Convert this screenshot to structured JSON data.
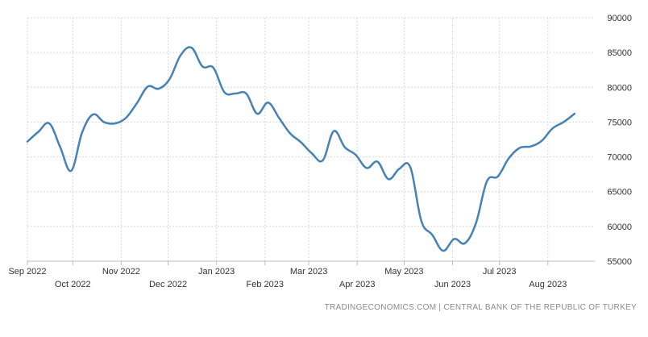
{
  "source_text": "TRADINGECONOMICS.COM  |  CENTRAL BANK OF THE REPUBLIC OF TURKEY",
  "colors": {
    "line": "#4682b4",
    "grid": "#d9d9d9",
    "axis": "#bdbdbd",
    "text": "#333333"
  },
  "chart_data": {
    "type": "line",
    "title": "",
    "xlabel": "",
    "ylabel": "",
    "ylim": [
      55000,
      90000
    ],
    "yticks": [
      55000,
      60000,
      65000,
      70000,
      75000,
      80000,
      85000,
      90000
    ],
    "y_axis_side": "right",
    "grid": true,
    "xlim": [
      "2022-09-02",
      "2023-08-31"
    ],
    "xticks": [
      {
        "date": "2022-09-01",
        "label": "Sep 2022",
        "row": 1
      },
      {
        "date": "2022-10-01",
        "label": "Oct 2022",
        "row": 2
      },
      {
        "date": "2022-11-01",
        "label": "Nov 2022",
        "row": 1
      },
      {
        "date": "2022-12-01",
        "label": "Dec 2022",
        "row": 2
      },
      {
        "date": "2023-01-01",
        "label": "Jan 2023",
        "row": 1
      },
      {
        "date": "2023-02-01",
        "label": "Feb 2023",
        "row": 2
      },
      {
        "date": "2023-03-01",
        "label": "Mar 2023",
        "row": 1
      },
      {
        "date": "2023-04-01",
        "label": "Apr 2023",
        "row": 2
      },
      {
        "date": "2023-05-01",
        "label": "May 2023",
        "row": 1
      },
      {
        "date": "2023-06-01",
        "label": "Jun 2023",
        "row": 2
      },
      {
        "date": "2023-07-01",
        "label": "Jul 2023",
        "row": 1
      },
      {
        "date": "2023-08-01",
        "label": "Aug 2023",
        "row": 2
      }
    ],
    "series": [
      {
        "name": "",
        "x": [
          "2022-09-02",
          "2022-09-09",
          "2022-09-16",
          "2022-09-23",
          "2022-09-30",
          "2022-10-07",
          "2022-10-14",
          "2022-10-21",
          "2022-10-28",
          "2022-11-04",
          "2022-11-11",
          "2022-11-18",
          "2022-11-25",
          "2022-12-02",
          "2022-12-09",
          "2022-12-16",
          "2022-12-23",
          "2022-12-30",
          "2023-01-06",
          "2023-01-13",
          "2023-01-20",
          "2023-01-27",
          "2023-02-03",
          "2023-02-10",
          "2023-02-17",
          "2023-02-24",
          "2023-03-03",
          "2023-03-10",
          "2023-03-17",
          "2023-03-24",
          "2023-03-31",
          "2023-04-07",
          "2023-04-14",
          "2023-04-21",
          "2023-04-28",
          "2023-05-05",
          "2023-05-12",
          "2023-05-19",
          "2023-05-26",
          "2023-06-02",
          "2023-06-09",
          "2023-06-16",
          "2023-06-23",
          "2023-06-30",
          "2023-07-07",
          "2023-07-14",
          "2023-07-21",
          "2023-07-28",
          "2023-08-04",
          "2023-08-11",
          "2023-08-18",
          "2023-08-25",
          "2023-08-31"
        ],
        "values": [
          72200,
          73600,
          74800,
          71400,
          68000,
          73500,
          76100,
          75000,
          74800,
          75600,
          77700,
          80100,
          79800,
          81200,
          84600,
          85700,
          83000,
          82800,
          79300,
          79100,
          79100,
          76200,
          77800,
          75600,
          73400,
          72100,
          70500,
          69500,
          73700,
          71400,
          70300,
          68400,
          69300,
          66800,
          68300,
          68500,
          60800,
          58800,
          56500,
          58200,
          57600,
          60500,
          66500,
          67200,
          69800,
          71300,
          71500,
          72300,
          74100,
          75000,
          76200,
          null,
          null
        ]
      }
    ]
  }
}
